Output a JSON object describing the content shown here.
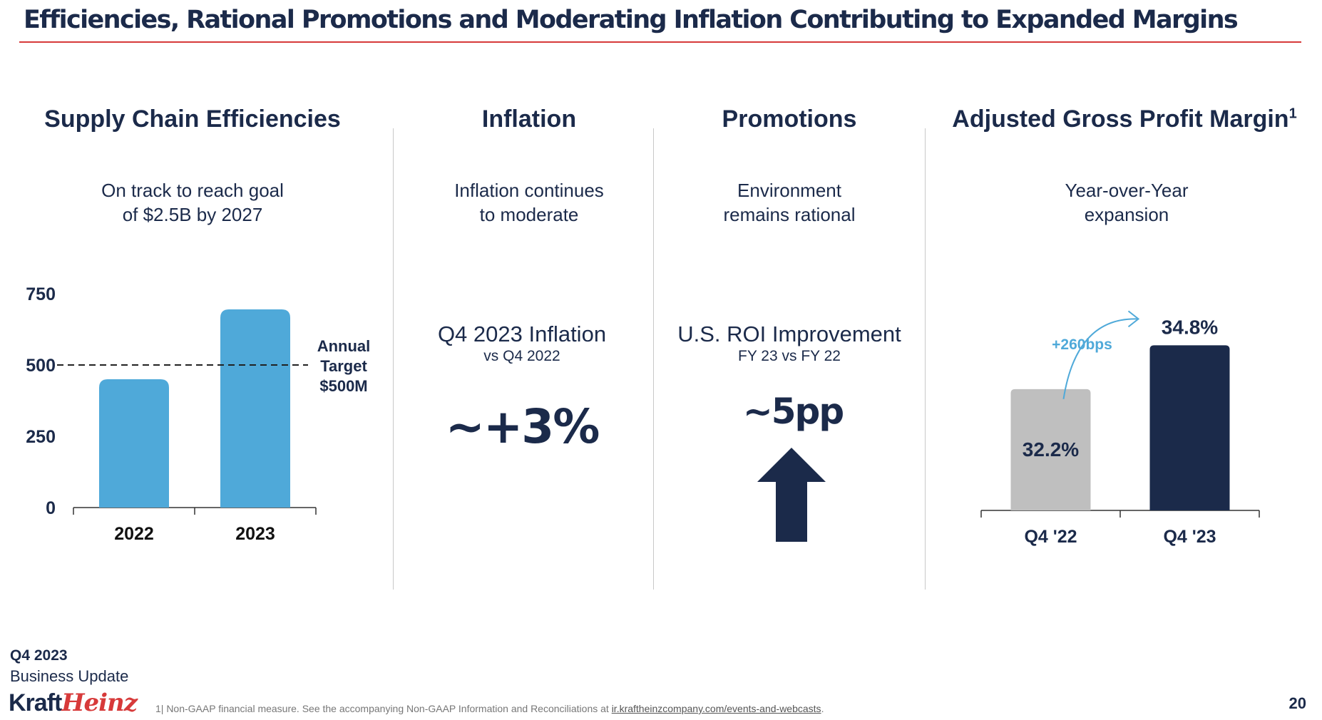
{
  "slide": {
    "title": "Efficiencies, Rational Promotions and Moderating Inflation Contributing to Expanded Margins",
    "page_number": "20"
  },
  "colors": {
    "navy": "#1b2a4a",
    "light_blue": "#4fa9d9",
    "grey": "#bfbfbf",
    "accent_red": "#d73a3a",
    "delta_blue": "#4fa9d9"
  },
  "supply_chain": {
    "heading": "Supply Chain Efficiencies",
    "subtitle": "On track to reach goal\nof $2.5B by 2027",
    "target_label_lines": [
      "Annual",
      "Target",
      "$500M"
    ]
  },
  "inflation": {
    "heading": "Inflation",
    "subtitle": "Inflation continues\nto moderate",
    "metric_label": "Q4 2023 Inflation",
    "metric_sublabel": "vs Q4 2022",
    "metric_value": "~+3%"
  },
  "promotions": {
    "heading": "Promotions",
    "subtitle": "Environment\nremains rational",
    "metric_label": "U.S. ROI Improvement",
    "metric_sublabel": "FY 23 vs FY 22",
    "metric_value": "~5pp",
    "arrow_icon": "up-arrow-icon"
  },
  "margin": {
    "heading": "Adjusted Gross Profit Margin",
    "heading_sup": "1",
    "subtitle": "Year-over-Year\nexpansion",
    "delta_label": "+260bps"
  },
  "chart_data": [
    {
      "type": "bar",
      "title": "Supply Chain Efficiencies",
      "categories": [
        "2022",
        "2023"
      ],
      "values": [
        450,
        695
      ],
      "ylim": [
        0,
        750
      ],
      "yticks": [
        0,
        250,
        500,
        750
      ],
      "reference_line": {
        "value": 500,
        "label": "Annual Target $500M",
        "style": "dashed"
      },
      "xlabel": "",
      "ylabel": "",
      "grid": false
    },
    {
      "type": "bar",
      "title": "Adjusted Gross Profit Margin",
      "categories": [
        "Q4 '22",
        "Q4 '23"
      ],
      "values": [
        32.2,
        34.8
      ],
      "value_labels": [
        "32.2%",
        "34.8%"
      ],
      "baseline": 25,
      "ylim": [
        25,
        36
      ],
      "annotation": "+260bps",
      "grid": false
    }
  ],
  "footer": {
    "period": "Q4 2023",
    "subtitle": "Business Update",
    "logo_text_1": "Kraft",
    "logo_text_2": "Heinz",
    "footnote_prefix": "1| Non-GAAP financial measure. See the accompanying Non-GAAP Information and Reconciliations at ",
    "footnote_link": "ir.kraftheinzcompany.com/events-and-webcasts",
    "footnote_suffix": "."
  }
}
